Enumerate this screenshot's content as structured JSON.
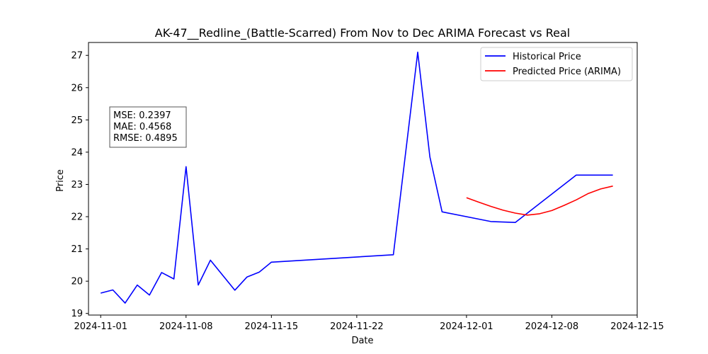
{
  "chart_data": {
    "type": "line",
    "title": "AK-47__Redline_(Battle-Scarred) From Nov to Dec ARIMA Forecast vs Real",
    "xlabel": "Date",
    "ylabel": "Price",
    "xlim": [
      "2024-10-31",
      "2024-12-15"
    ],
    "ylim": [
      18.95,
      27.4
    ],
    "x_ticks": [
      "2024-11-01",
      "2024-11-08",
      "2024-11-15",
      "2024-11-22",
      "2024-12-01",
      "2024-12-08",
      "2024-12-15"
    ],
    "y_ticks": [
      19,
      20,
      21,
      22,
      23,
      24,
      25,
      26,
      27
    ],
    "grid": false,
    "legend_position": "upper right",
    "series": [
      {
        "name": "Historical Price",
        "color": "#0000ff",
        "points": [
          [
            "2024-11-01",
            19.63
          ],
          [
            "2024-11-02",
            19.73
          ],
          [
            "2024-11-03",
            19.32
          ],
          [
            "2024-11-04",
            19.88
          ],
          [
            "2024-11-05",
            19.57
          ],
          [
            "2024-11-06",
            20.27
          ],
          [
            "2024-11-07",
            20.07
          ],
          [
            "2024-11-08",
            23.55
          ],
          [
            "2024-11-09",
            19.88
          ],
          [
            "2024-11-10",
            20.65
          ],
          [
            "2024-11-12",
            19.72
          ],
          [
            "2024-11-13",
            20.13
          ],
          [
            "2024-11-14",
            20.28
          ],
          [
            "2024-11-15",
            20.59
          ],
          [
            "2024-11-25",
            20.82
          ],
          [
            "2024-11-27",
            27.1
          ],
          [
            "2024-11-28",
            23.85
          ],
          [
            "2024-11-29",
            22.15
          ],
          [
            "2024-12-03",
            21.85
          ],
          [
            "2024-12-05",
            21.82
          ],
          [
            "2024-12-10",
            23.29
          ],
          [
            "2024-12-13",
            23.29
          ]
        ]
      },
      {
        "name": "Predicted Price (ARIMA)",
        "color": "#ff0000",
        "points": [
          [
            "2024-12-01",
            22.59
          ],
          [
            "2024-12-02",
            22.45
          ],
          [
            "2024-12-03",
            22.32
          ],
          [
            "2024-12-04",
            22.2
          ],
          [
            "2024-12-05",
            22.11
          ],
          [
            "2024-12-06",
            22.05
          ],
          [
            "2024-12-07",
            22.09
          ],
          [
            "2024-12-08",
            22.19
          ],
          [
            "2024-12-09",
            22.35
          ],
          [
            "2024-12-10",
            22.52
          ],
          [
            "2024-12-11",
            22.72
          ],
          [
            "2024-12-12",
            22.86
          ],
          [
            "2024-12-13",
            22.95
          ]
        ]
      }
    ],
    "annotation": {
      "lines": [
        "MSE: 0.2397",
        "MAE: 0.4568",
        "RMSE: 0.4895"
      ]
    }
  }
}
